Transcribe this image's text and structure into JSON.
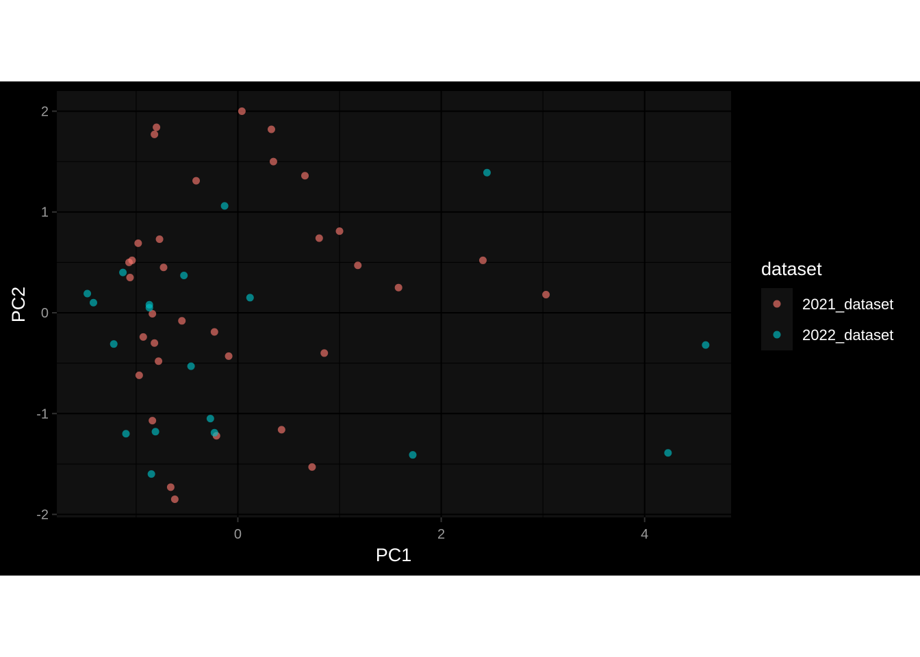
{
  "chart_data": {
    "type": "scatter",
    "title": "",
    "xlabel": "PC1",
    "ylabel": "PC2",
    "xlim": [
      -1.78,
      4.85
    ],
    "ylim": [
      -2.03,
      2.2
    ],
    "x_ticks": [
      0,
      2,
      4
    ],
    "x_tick_labels": [
      "0",
      "2",
      "4"
    ],
    "y_ticks": [
      -2,
      -1,
      0,
      1,
      2
    ],
    "y_tick_labels": [
      "-2",
      "-1",
      "0",
      "1",
      "2"
    ],
    "grid": true,
    "legend": {
      "title": "dataset",
      "position": "right"
    },
    "series": [
      {
        "name": "2021_dataset",
        "color": "#F8766D",
        "points": [
          {
            "x": 0.04,
            "y": 2.0
          },
          {
            "x": -0.8,
            "y": 1.84
          },
          {
            "x": -0.82,
            "y": 1.77
          },
          {
            "x": 0.33,
            "y": 1.82
          },
          {
            "x": 0.35,
            "y": 1.5
          },
          {
            "x": -0.41,
            "y": 1.31
          },
          {
            "x": 0.66,
            "y": 1.36
          },
          {
            "x": 1.0,
            "y": 0.81
          },
          {
            "x": 0.8,
            "y": 0.74
          },
          {
            "x": -0.77,
            "y": 0.73
          },
          {
            "x": -0.98,
            "y": 0.69
          },
          {
            "x": -1.04,
            "y": 0.52
          },
          {
            "x": -1.07,
            "y": 0.5
          },
          {
            "x": -0.73,
            "y": 0.45
          },
          {
            "x": -1.06,
            "y": 0.35
          },
          {
            "x": 1.18,
            "y": 0.47
          },
          {
            "x": 2.41,
            "y": 0.52
          },
          {
            "x": 1.58,
            "y": 0.25
          },
          {
            "x": 3.03,
            "y": 0.18
          },
          {
            "x": -0.84,
            "y": -0.01
          },
          {
            "x": -0.55,
            "y": -0.08
          },
          {
            "x": -0.23,
            "y": -0.19
          },
          {
            "x": -0.93,
            "y": -0.24
          },
          {
            "x": -0.82,
            "y": -0.3
          },
          {
            "x": -0.09,
            "y": -0.43
          },
          {
            "x": 0.85,
            "y": -0.4
          },
          {
            "x": -0.78,
            "y": -0.48
          },
          {
            "x": -0.97,
            "y": -0.62
          },
          {
            "x": -0.84,
            "y": -1.07
          },
          {
            "x": 0.43,
            "y": -1.16
          },
          {
            "x": -0.21,
            "y": -1.22
          },
          {
            "x": 0.73,
            "y": -1.53
          },
          {
            "x": -0.66,
            "y": -1.73
          },
          {
            "x": -0.62,
            "y": -1.85
          }
        ]
      },
      {
        "name": "2022_dataset",
        "color": "#00BFC4",
        "points": [
          {
            "x": 2.45,
            "y": 1.39
          },
          {
            "x": -0.13,
            "y": 1.06
          },
          {
            "x": -1.13,
            "y": 0.4
          },
          {
            "x": -0.53,
            "y": 0.37
          },
          {
            "x": 0.12,
            "y": 0.15
          },
          {
            "x": -1.48,
            "y": 0.19
          },
          {
            "x": -1.42,
            "y": 0.1
          },
          {
            "x": -0.87,
            "y": 0.08
          },
          {
            "x": -0.87,
            "y": 0.05
          },
          {
            "x": -1.22,
            "y": -0.31
          },
          {
            "x": -0.46,
            "y": -0.53
          },
          {
            "x": 4.6,
            "y": -0.32
          },
          {
            "x": -0.27,
            "y": -1.05
          },
          {
            "x": -0.23,
            "y": -1.19
          },
          {
            "x": -0.81,
            "y": -1.18
          },
          {
            "x": -1.1,
            "y": -1.2
          },
          {
            "x": 1.72,
            "y": -1.41
          },
          {
            "x": 4.23,
            "y": -1.39
          },
          {
            "x": -0.85,
            "y": -1.6
          }
        ]
      }
    ]
  }
}
